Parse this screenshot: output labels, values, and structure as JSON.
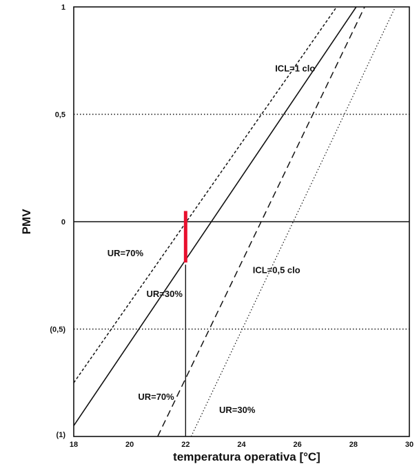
{
  "chart_data": {
    "type": "line",
    "xlabel": "temperatura operativa [°C]",
    "ylabel": "PMV",
    "xlim": [
      18,
      30
    ],
    "ylim": [
      -1,
      1
    ],
    "x_ticks": [
      {
        "value": 18,
        "label": "18"
      },
      {
        "value": 20,
        "label": "20"
      },
      {
        "value": 22,
        "label": "22"
      },
      {
        "value": 24,
        "label": "24"
      },
      {
        "value": 26,
        "label": "26"
      },
      {
        "value": 28,
        "label": "28"
      },
      {
        "value": 30,
        "label": "30"
      }
    ],
    "y_ticks": [
      {
        "value": 1,
        "label": "1"
      },
      {
        "value": 0.5,
        "label": "0,5"
      },
      {
        "value": 0,
        "label": "0"
      },
      {
        "value": -0.5,
        "label": "(0,5)"
      },
      {
        "value": -1,
        "label": "(1)"
      }
    ],
    "horizontal_reference_lines": [
      {
        "y": 0.5,
        "style": "dotted"
      },
      {
        "y": 0,
        "style": "solid"
      },
      {
        "y": -0.5,
        "style": "dotted"
      }
    ],
    "series": [
      {
        "key": "icl1-ur70",
        "style": "dashed-fine",
        "x": [
          18,
          27.4
        ],
        "y": [
          -0.75,
          1
        ]
      },
      {
        "key": "icl1-ur30",
        "style": "solid",
        "x": [
          18,
          28.1
        ],
        "y": [
          -0.95,
          1
        ]
      },
      {
        "key": "icl05-ur70",
        "style": "dashed",
        "x": [
          21.0,
          28.4
        ],
        "y": [
          -1,
          1
        ]
      },
      {
        "key": "icl05-ur30",
        "style": "dotted",
        "x": [
          22.2,
          29.5
        ],
        "y": [
          -1,
          1
        ]
      }
    ],
    "vertical_marker": {
      "x": 22,
      "y_from": -1,
      "y_to": -0.2
    },
    "highlight_segment": {
      "x": 22,
      "y_from": -0.19,
      "y_to": 0.05,
      "color": "#e8102e"
    },
    "annotations": [
      {
        "text": "ICL=1 clo",
        "x": 25.2,
        "y": 0.7
      },
      {
        "text": "UR=70%",
        "x": 19.2,
        "y": -0.16
      },
      {
        "text": "UR=30%",
        "x": 20.6,
        "y": -0.35
      },
      {
        "text": "ICL=0,5 clo",
        "x": 24.4,
        "y": -0.24
      },
      {
        "text": "UR=70%",
        "x": 20.3,
        "y": -0.83
      },
      {
        "text": "UR=30%",
        "x": 23.2,
        "y": -0.89
      }
    ]
  }
}
